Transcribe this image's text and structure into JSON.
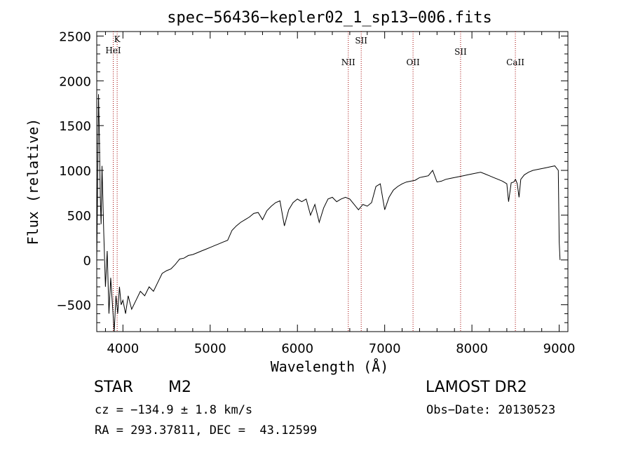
{
  "chart_data": {
    "type": "line",
    "title": "spec−56436−kepler02_1_sp13−006.fits",
    "xlabel": "Wavelength (Å)",
    "ylabel": "Flux (relative)",
    "xlim": [
      3700,
      9100
    ],
    "ylim": [
      -800,
      2550
    ],
    "xticks": [
      4000,
      5000,
      6000,
      7000,
      8000,
      9000
    ],
    "xtick_labels": [
      "4000",
      "5000",
      "6000",
      "7000",
      "8000",
      "9000"
    ],
    "yticks": [
      -500,
      0,
      500,
      1000,
      1500,
      2000,
      2500
    ],
    "ytick_labels": [
      "−500",
      "0",
      "500",
      "1000",
      "1500",
      "2000",
      "2500"
    ],
    "grid": false,
    "series": [
      {
        "x": [
          3700,
          3710,
          3720,
          3730,
          3740,
          3750,
          3760,
          3780,
          3800,
          3820,
          3840,
          3860,
          3880,
          3900,
          3920,
          3940,
          3960,
          3980,
          4000,
          4030,
          4060,
          4100,
          4150,
          4200,
          4250,
          4300,
          4350,
          4400,
          4450,
          4500,
          4550,
          4600,
          4650,
          4700,
          4750,
          4800,
          4850,
          4900,
          4950,
          5000,
          5050,
          5100,
          5150,
          5200,
          5250,
          5300,
          5350,
          5400,
          5450,
          5500,
          5550,
          5600,
          5650,
          5700,
          5750,
          5800,
          5850,
          5900,
          5950,
          6000,
          6050,
          6100,
          6150,
          6200,
          6250,
          6300,
          6350,
          6400,
          6450,
          6500,
          6550,
          6600,
          6650,
          6700,
          6750,
          6800,
          6850,
          6900,
          6950,
          7000,
          7050,
          7100,
          7150,
          7200,
          7250,
          7300,
          7350,
          7400,
          7450,
          7500,
          7550,
          7600,
          7650,
          7700,
          7750,
          7800,
          7850,
          7900,
          7950,
          8000,
          8050,
          8100,
          8150,
          8200,
          8250,
          8300,
          8350,
          8400,
          8420,
          8450,
          8480,
          8500,
          8520,
          8540,
          8560,
          8600,
          8650,
          8700,
          8750,
          8800,
          8850,
          8900,
          8950,
          8990,
          9000,
          9010
        ],
        "y": [
          0,
          800,
          1850,
          1400,
          700,
          400,
          1050,
          300,
          -300,
          100,
          -600,
          -200,
          -500,
          -800,
          -400,
          -600,
          -300,
          -500,
          -450,
          -600,
          -400,
          -550,
          -450,
          -350,
          -400,
          -300,
          -350,
          -250,
          -150,
          -120,
          -100,
          -50,
          10,
          20,
          50,
          60,
          80,
          100,
          120,
          140,
          160,
          180,
          200,
          220,
          330,
          380,
          420,
          450,
          480,
          520,
          530,
          450,
          550,
          600,
          640,
          660,
          380,
          560,
          640,
          680,
          650,
          680,
          500,
          620,
          420,
          580,
          680,
          700,
          650,
          680,
          700,
          680,
          620,
          560,
          620,
          600,
          640,
          820,
          850,
          560,
          700,
          780,
          820,
          850,
          870,
          880,
          890,
          920,
          930,
          940,
          1000,
          870,
          880,
          900,
          910,
          920,
          930,
          940,
          950,
          960,
          970,
          980,
          960,
          940,
          920,
          900,
          880,
          850,
          650,
          860,
          870,
          900,
          850,
          700,
          900,
          950,
          980,
          1000,
          1010,
          1020,
          1030,
          1040,
          1050,
          1000,
          200,
          0
        ]
      }
    ],
    "line_markers": [
      {
        "label": "K",
        "wavelength": 3934
      },
      {
        "label": "HeI",
        "wavelength": 3889
      },
      {
        "label": "NII",
        "wavelength": 6583
      },
      {
        "label": "SII",
        "wavelength": 6731
      },
      {
        "label": "OII",
        "wavelength": 7325
      },
      {
        "label": "SII",
        "wavelength": 7870
      },
      {
        "label": "CaII",
        "wavelength": 8498
      }
    ],
    "marker_color": "#a00000"
  },
  "info": {
    "object_class": "STAR",
    "subclass": "M2",
    "survey": "LAMOST DR2",
    "redshift": "cz = −134.9 ± 1.8 km/s",
    "obs_date": "Obs−Date: 20130523",
    "coords": "RA = 293.37811, DEC =  43.12599"
  }
}
